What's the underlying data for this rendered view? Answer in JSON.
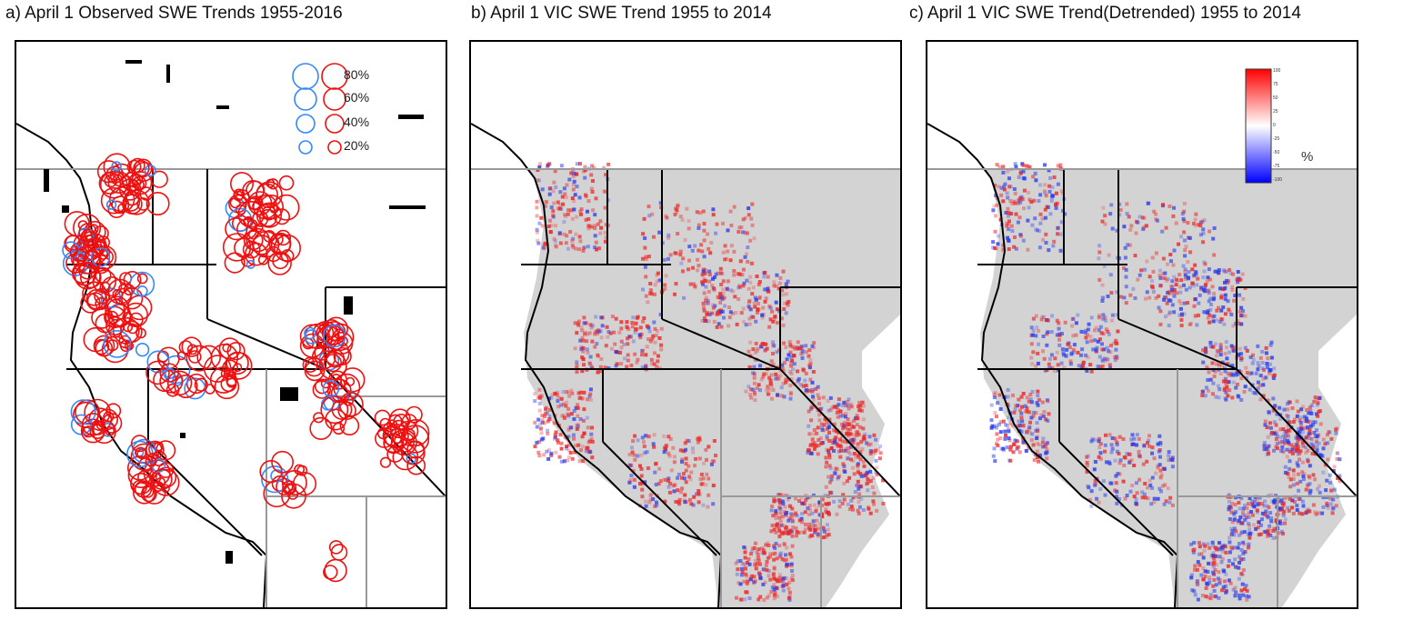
{
  "panels": [
    {
      "title": "a) April 1 Observed SWE Trends 1955-2016"
    },
    {
      "title": "b) April 1 VIC SWE Trend 1955 to 2014"
    },
    {
      "title": "c) April 1 VIC SWE Trend(Detrended) 1955 to 2014"
    }
  ],
  "circle_legend": {
    "labels": [
      "80%",
      "60%",
      "40%",
      "20%"
    ],
    "colors": {
      "decrease": "#ee1111",
      "increase": "#3388ff"
    }
  },
  "colorbar": {
    "unit": "%",
    "tick_labels": [
      "100",
      "75",
      "50",
      "25",
      "0",
      "-25",
      "-50",
      "-75",
      "-100"
    ],
    "colors": {
      "top": "#ff0000",
      "mid": "#ffffff",
      "bottom": "#0000ff"
    }
  },
  "colors": {
    "land": "#d3d3d3",
    "border": "#000000",
    "grid": "#999999",
    "red": "#ee1111",
    "blue": "#3388ff"
  }
}
